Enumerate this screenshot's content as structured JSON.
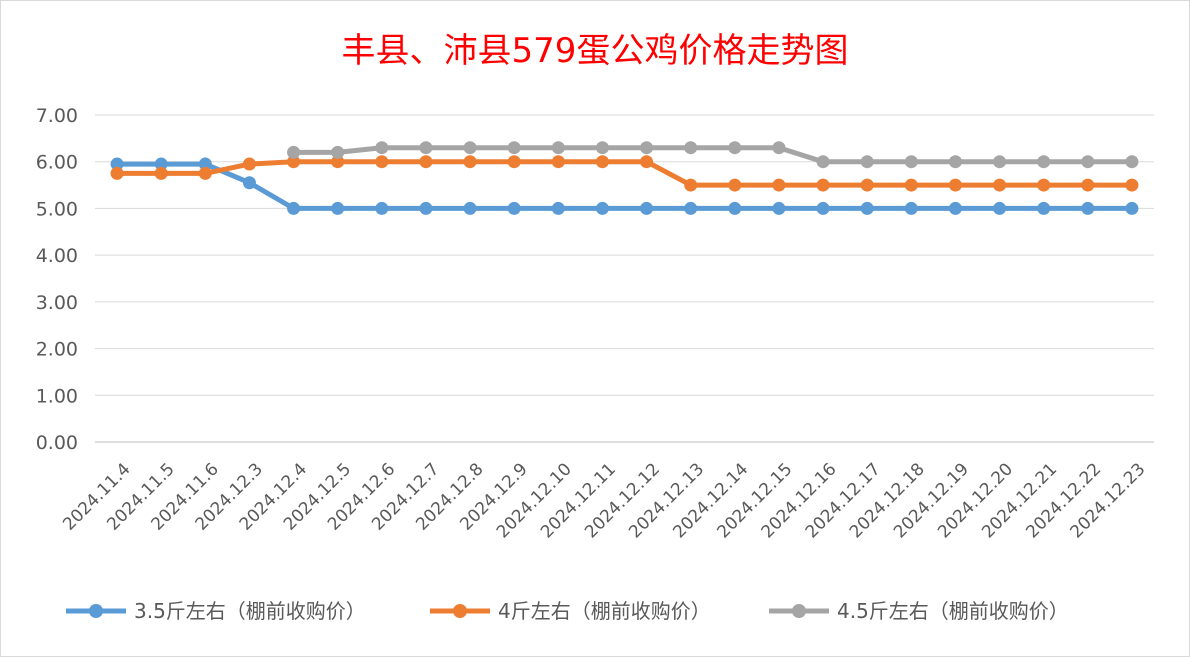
{
  "chart_data": {
    "type": "line",
    "title": "丰县、沛县579蛋公鸡价格走势图",
    "xlabel": "",
    "ylabel": "",
    "ylim": [
      0,
      7
    ],
    "yticks": [
      "0.00",
      "1.00",
      "2.00",
      "3.00",
      "4.00",
      "5.00",
      "6.00",
      "7.00"
    ],
    "grid": true,
    "legend_position": "bottom",
    "categories": [
      "2024.11.4",
      "2024.11.5",
      "2024.11.6",
      "2024.12.3",
      "2024.12.4",
      "2024.12.5",
      "2024.12.6",
      "2024.12.7",
      "2024.12.8",
      "2024.12.9",
      "2024.12.10",
      "2024.12.11",
      "2024.12.12",
      "2024.12.13",
      "2024.12.14",
      "2024.12.15",
      "2024.12.16",
      "2024.12.17",
      "2024.12.18",
      "2024.12.19",
      "2024.12.20",
      "2024.12.21",
      "2024.12.22",
      "2024.12.23"
    ],
    "series": [
      {
        "name": "3.5斤左右（棚前收购价）",
        "color": "#5B9BD5",
        "values": [
          5.95,
          5.95,
          5.95,
          5.55,
          5.0,
          5.0,
          5.0,
          5.0,
          5.0,
          5.0,
          5.0,
          5.0,
          5.0,
          5.0,
          5.0,
          5.0,
          5.0,
          5.0,
          5.0,
          5.0,
          5.0,
          5.0,
          5.0,
          5.0
        ]
      },
      {
        "name": "4斤左右（棚前收购价）",
        "color": "#ED7D31",
        "values": [
          5.75,
          5.75,
          5.75,
          5.95,
          6.0,
          6.0,
          6.0,
          6.0,
          6.0,
          6.0,
          6.0,
          6.0,
          6.0,
          5.5,
          5.5,
          5.5,
          5.5,
          5.5,
          5.5,
          5.5,
          5.5,
          5.5,
          5.5,
          5.5
        ]
      },
      {
        "name": "4.5斤左右（棚前收购价）",
        "color": "#A5A5A5",
        "values": [
          null,
          null,
          null,
          null,
          6.2,
          6.2,
          6.3,
          6.3,
          6.3,
          6.3,
          6.3,
          6.3,
          6.3,
          6.3,
          6.3,
          6.3,
          6.0,
          6.0,
          6.0,
          6.0,
          6.0,
          6.0,
          6.0,
          6.0
        ]
      }
    ]
  }
}
